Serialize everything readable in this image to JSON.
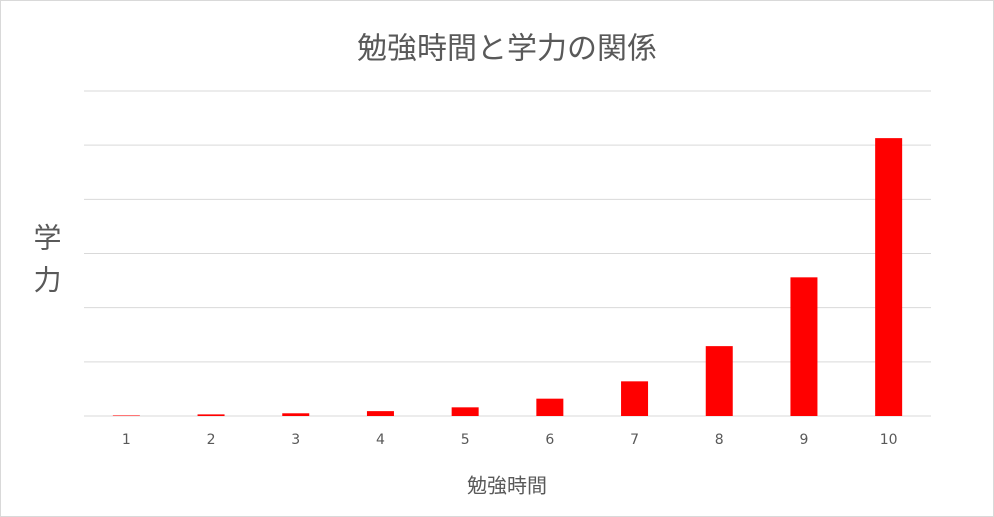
{
  "chart_data": {
    "type": "bar",
    "title": "勉強時間と学力の関係",
    "x_label": "勉強時間",
    "y_label": "学力",
    "categories": [
      "1",
      "2",
      "3",
      "4",
      "5",
      "6",
      "7",
      "8",
      "9",
      "10"
    ],
    "values": [
      0.01,
      0.03,
      0.05,
      0.09,
      0.16,
      0.32,
      0.64,
      1.29,
      2.56,
      5.13
    ],
    "color": "#ff0000",
    "ylim": [
      0,
      6
    ],
    "yticks": [
      0,
      1,
      2,
      3,
      4,
      5,
      6
    ],
    "grid": true,
    "y_tick_labels": false
  }
}
